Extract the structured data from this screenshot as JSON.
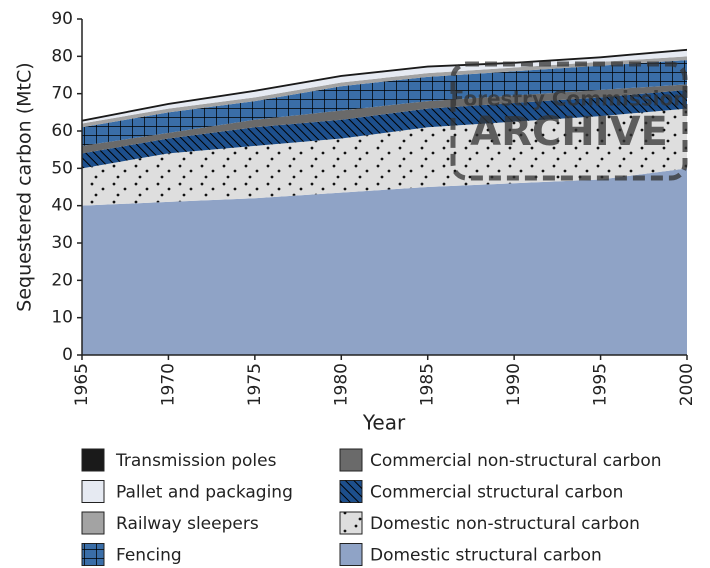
{
  "chart_data": {
    "type": "stacked-area",
    "x_label": "Year",
    "y_label": "Sequestered carbon (MtC)",
    "x": [
      1965,
      1970,
      1975,
      1980,
      1985,
      1990,
      1995,
      2000
    ],
    "xlim": [
      1965,
      2000
    ],
    "xticks": [
      1965,
      1970,
      1975,
      1980,
      1985,
      1990,
      1995,
      2000
    ],
    "ylim": [
      0,
      90
    ],
    "yticks": [
      0,
      10,
      20,
      30,
      40,
      50,
      60,
      70,
      80,
      90
    ],
    "annotations": [
      "Forestry Commission",
      "ARCHIVE"
    ],
    "series": [
      {
        "name": "Domestic structural carbon",
        "color": "#8fa3c6",
        "values": [
          40,
          41,
          42,
          43.5,
          45,
          46,
          47,
          50
        ]
      },
      {
        "name": "Domestic non-structural carbon",
        "color": "#dedede",
        "pattern": "dots",
        "values": [
          10,
          13,
          14,
          14.5,
          16,
          16.5,
          17,
          16
        ]
      },
      {
        "name": "Commercial structural carbon",
        "color": "#1d4f8c",
        "pattern": "hatch",
        "values": [
          4,
          4,
          5,
          5,
          5,
          5,
          5,
          5
        ]
      },
      {
        "name": "Commercial non-structural carbon",
        "color": "#6a6a6a",
        "values": [
          2,
          1.5,
          2,
          2.5,
          2,
          2,
          2,
          1.5
        ]
      },
      {
        "name": "Fencing",
        "color": "#3a6ea8",
        "pattern": "grid",
        "values": [
          5,
          5.5,
          5,
          6.5,
          6.5,
          6.5,
          6.5,
          6.5
        ]
      },
      {
        "name": "Railway sleepers",
        "color": "#a3a3a3",
        "values": [
          1,
          1,
          1,
          1,
          1,
          1,
          1,
          1
        ]
      },
      {
        "name": "Pallet and packaging",
        "color": "#e6eaf2",
        "values": [
          0.5,
          1,
          1.5,
          1.5,
          1.5,
          1,
          1,
          1.5
        ]
      },
      {
        "name": "Transmission poles",
        "color": "#1a1a1a",
        "values": [
          0.5,
          0.5,
          0.5,
          0.5,
          0.5,
          0.5,
          0.5,
          0.5
        ]
      }
    ]
  }
}
